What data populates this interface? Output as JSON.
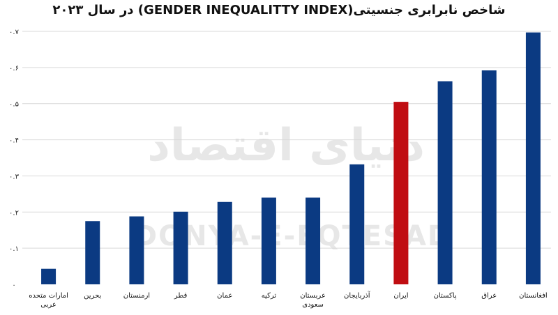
{
  "chart_data": {
    "type": "bar",
    "title": "شاخص نابرابری جنسیتی(GENDER INEQUALITTY INDEX) در سال ۲۰۲۳",
    "categories": [
      "امارات متحده عربی",
      "بحرین",
      "ارمنستان",
      "قطر",
      "عمان",
      "ترکیه",
      "عربستان سعودی",
      "آذربایجان",
      "ایران",
      "پاکستان",
      "عراق",
      "افغانستان"
    ],
    "values": [
      0.043,
      0.175,
      0.188,
      0.201,
      0.228,
      0.24,
      0.24,
      0.332,
      0.505,
      0.562,
      0.592,
      0.697
    ],
    "highlight": "ایران",
    "colors": {
      "bar": "#0b3a82",
      "highlight": "#c00d12"
    },
    "ylim": [
      0,
      0.7
    ],
    "yticks": [
      "۰",
      "۰.۱",
      "۰.۲",
      "۰.۳",
      "۰.۴",
      "۰.۵",
      "۰.۶",
      "۰.۷"
    ],
    "grid": true,
    "xlabel": "",
    "ylabel": "",
    "watermark": [
      "دنیای اقتصاد",
      "DONYA-E-EQTESAD"
    ]
  }
}
